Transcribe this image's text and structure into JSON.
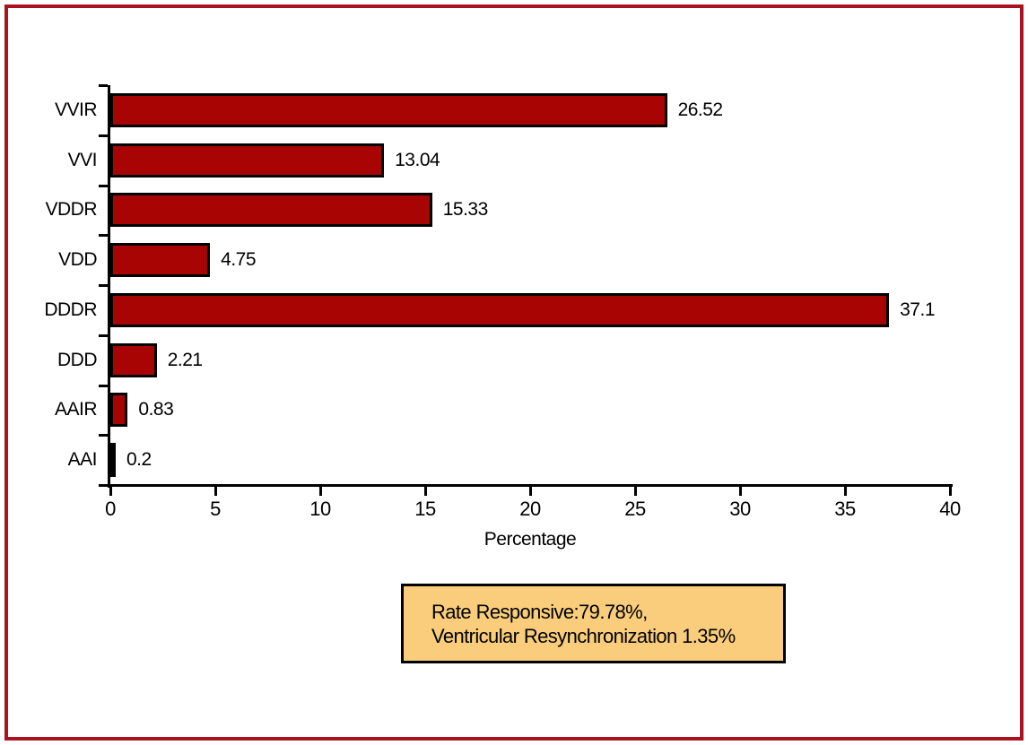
{
  "chart_data": {
    "type": "bar",
    "orientation": "horizontal",
    "categories": [
      "VVIR",
      "VVI",
      "VDDR",
      "VDD",
      "DDDR",
      "DDD",
      "AAIR",
      "AAI"
    ],
    "values": [
      26.52,
      13.04,
      15.33,
      4.75,
      37.1,
      2.21,
      0.83,
      0.2
    ],
    "value_labels": [
      "26.52",
      "13.04",
      "15.33",
      "4.75",
      "37.1",
      "2.21",
      "0.83",
      "0.2"
    ],
    "title": "",
    "xlabel": "Percentage",
    "ylabel": "",
    "xlim": [
      0,
      40
    ],
    "x_ticks": [
      0,
      5,
      10,
      15,
      20,
      25,
      30,
      35,
      40
    ],
    "grid": false,
    "bar_color": "#A80404",
    "bar_border_color": "#000000",
    "axis_color": "#000000"
  },
  "annotation_box": {
    "line1": "Rate Responsive:79.78%,",
    "line2": "Ventricular Resynchronization 1.35%",
    "background": "#F9CD7B",
    "border_color": "#000000"
  },
  "frame": {
    "border_color": "#A9121E"
  }
}
